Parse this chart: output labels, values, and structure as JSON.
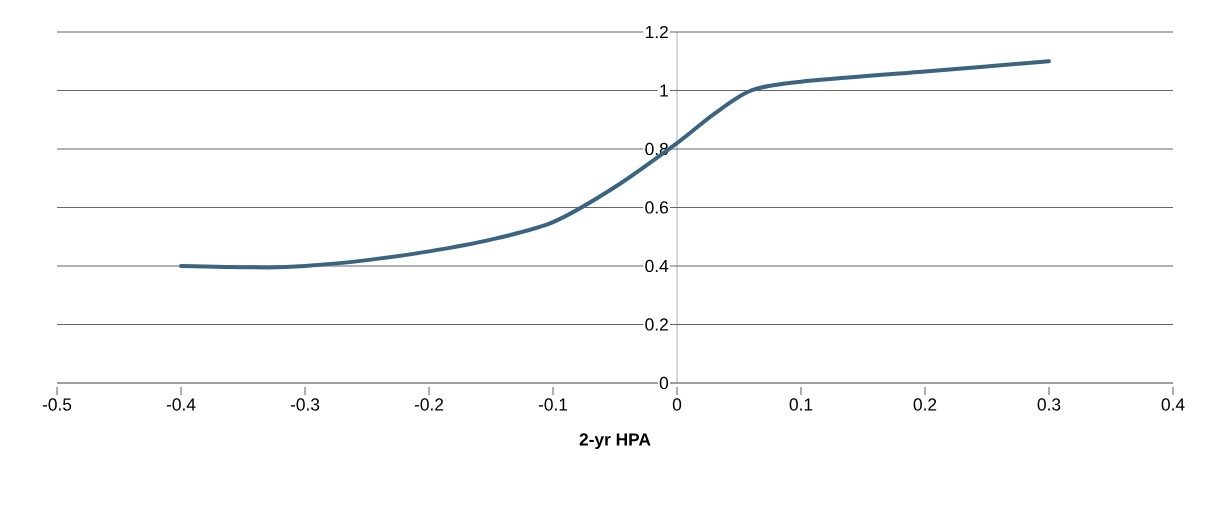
{
  "chart_data": {
    "type": "line",
    "xlabel": "2-yr HPA",
    "x": [
      -0.4,
      -0.33,
      -0.3,
      -0.25,
      -0.2,
      -0.15,
      -0.1,
      -0.05,
      0,
      0.03,
      0.06,
      0.1,
      0.2,
      0.3
    ],
    "series": [
      {
        "color": "#3b6480",
        "values": [
          0.4,
          0.395,
          0.4,
          0.42,
          0.45,
          0.49,
          0.55,
          0.67,
          0.82,
          0.92,
          1.0,
          1.03,
          1.065,
          1.1
        ]
      }
    ],
    "xlim": [
      -0.5,
      0.4
    ],
    "xticks": [
      -0.5,
      -0.4,
      -0.3,
      -0.2,
      -0.1,
      0,
      0.1,
      0.2,
      0.3,
      0.4
    ],
    "ylim": [
      0,
      1.2
    ],
    "yticks": [
      0,
      0.2,
      0.4,
      0.6,
      0.8,
      1,
      1.2
    ],
    "grid": "y",
    "marker": "none",
    "line_style": "solid"
  }
}
